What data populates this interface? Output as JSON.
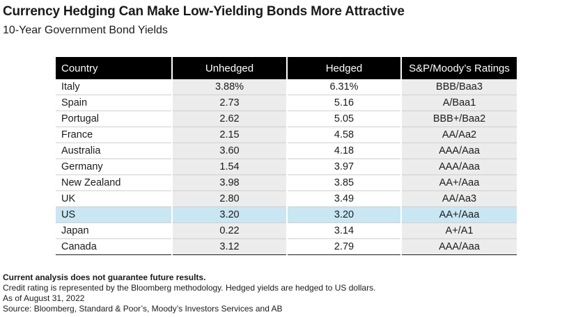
{
  "title": "Currency Hedging Can Make Low-Yielding Bonds More Attractive",
  "subtitle": "10-Year Government Bond Yields",
  "colors": {
    "header_bg": "#000000",
    "shade": "#ececec",
    "highlight": "#c9e6f3"
  },
  "chart_data": {
    "type": "table",
    "title": "Currency Hedging Can Make Low-Yielding Bonds More Attractive",
    "subtitle": "10-Year Government Bond Yields",
    "columns": [
      "Country",
      "Unhedged",
      "Hedged",
      "S&P/Moody’s Ratings"
    ],
    "highlight_row": "US",
    "rows": [
      {
        "country": "Italy",
        "unhedged": "3.88%",
        "hedged": "6.31%",
        "rating": "BBB/Baa3"
      },
      {
        "country": "Spain",
        "unhedged": "2.73",
        "hedged": "5.16",
        "rating": "A/Baa1"
      },
      {
        "country": "Portugal",
        "unhedged": "2.62",
        "hedged": "5.05",
        "rating": "BBB+/Baa2"
      },
      {
        "country": "France",
        "unhedged": "2.15",
        "hedged": "4.58",
        "rating": "AA/Aa2"
      },
      {
        "country": "Australia",
        "unhedged": "3.60",
        "hedged": "4.18",
        "rating": "AAA/Aaa"
      },
      {
        "country": "Germany",
        "unhedged": "1.54",
        "hedged": "3.97",
        "rating": "AAA/Aaa"
      },
      {
        "country": "New Zealand",
        "unhedged": "3.98",
        "hedged": "3.85",
        "rating": "AA+/Aaa"
      },
      {
        "country": "UK",
        "unhedged": "2.80",
        "hedged": "3.49",
        "rating": "AA/Aa3"
      },
      {
        "country": "US",
        "unhedged": "3.20",
        "hedged": "3.20",
        "rating": "AA+/Aaa"
      },
      {
        "country": "Japan",
        "unhedged": "0.22",
        "hedged": "3.14",
        "rating": "A+/A1"
      },
      {
        "country": "Canada",
        "unhedged": "3.12",
        "hedged": "2.79",
        "rating": "AAA/Aaa"
      }
    ]
  },
  "footer": {
    "disclaimer": "Current analysis does not guarantee future results.",
    "note": "Credit rating is represented by the Bloomberg methodology. Hedged yields are hedged to US dollars.",
    "date": "As of August 31, 2022",
    "source": "Source: Bloomberg, Standard & Poor’s, Moody’s Investors Services and AB"
  }
}
